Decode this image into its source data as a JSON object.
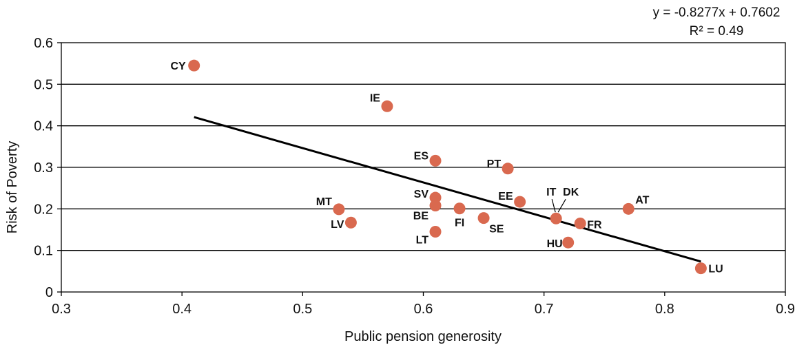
{
  "chart_data": {
    "type": "scatter",
    "title": "",
    "xlabel": "Public pension generosity",
    "ylabel": "Risk of Poverty",
    "xlim": [
      0.3,
      0.9
    ],
    "ylim": [
      0,
      0.6
    ],
    "xticks": [
      "0.3",
      "0.4",
      "0.5",
      "0.6",
      "0.7",
      "0.8",
      "0.9"
    ],
    "yticks": [
      "0",
      "0.1",
      "0.2",
      "0.3",
      "0.4",
      "0.5",
      "0.6"
    ],
    "grid": "horizontal",
    "points": [
      {
        "label": "CY",
        "x": 0.41,
        "y": 0.545
      },
      {
        "label": "IE",
        "x": 0.57,
        "y": 0.447
      },
      {
        "label": "ES",
        "x": 0.61,
        "y": 0.316
      },
      {
        "label": "PT",
        "x": 0.67,
        "y": 0.297
      },
      {
        "label": "SV",
        "x": 0.61,
        "y": 0.227
      },
      {
        "label": "BE",
        "x": 0.61,
        "y": 0.208
      },
      {
        "label": "FI",
        "x": 0.63,
        "y": 0.201
      },
      {
        "label": "SE",
        "x": 0.65,
        "y": 0.178
      },
      {
        "label": "EE",
        "x": 0.68,
        "y": 0.217
      },
      {
        "label": "IT",
        "x": 0.71,
        "y": 0.177
      },
      {
        "label": "DK",
        "x": 0.71,
        "y": 0.177
      },
      {
        "label": "FR",
        "x": 0.73,
        "y": 0.165
      },
      {
        "label": "AT",
        "x": 0.77,
        "y": 0.2
      },
      {
        "label": "HU",
        "x": 0.72,
        "y": 0.119
      },
      {
        "label": "LU",
        "x": 0.83,
        "y": 0.057
      },
      {
        "label": "MT",
        "x": 0.53,
        "y": 0.199
      },
      {
        "label": "LV",
        "x": 0.54,
        "y": 0.167
      },
      {
        "label": "LT",
        "x": 0.61,
        "y": 0.145
      }
    ],
    "trendline": {
      "x_start": 0.41,
      "x_end": 0.83,
      "slope": -0.8277,
      "intercept": 0.7602
    },
    "equation": "y = -0.8277x + 0.7602",
    "r_squared": "R² = 0.49",
    "marker_color": "#d9694f",
    "line_color": "#000000"
  }
}
